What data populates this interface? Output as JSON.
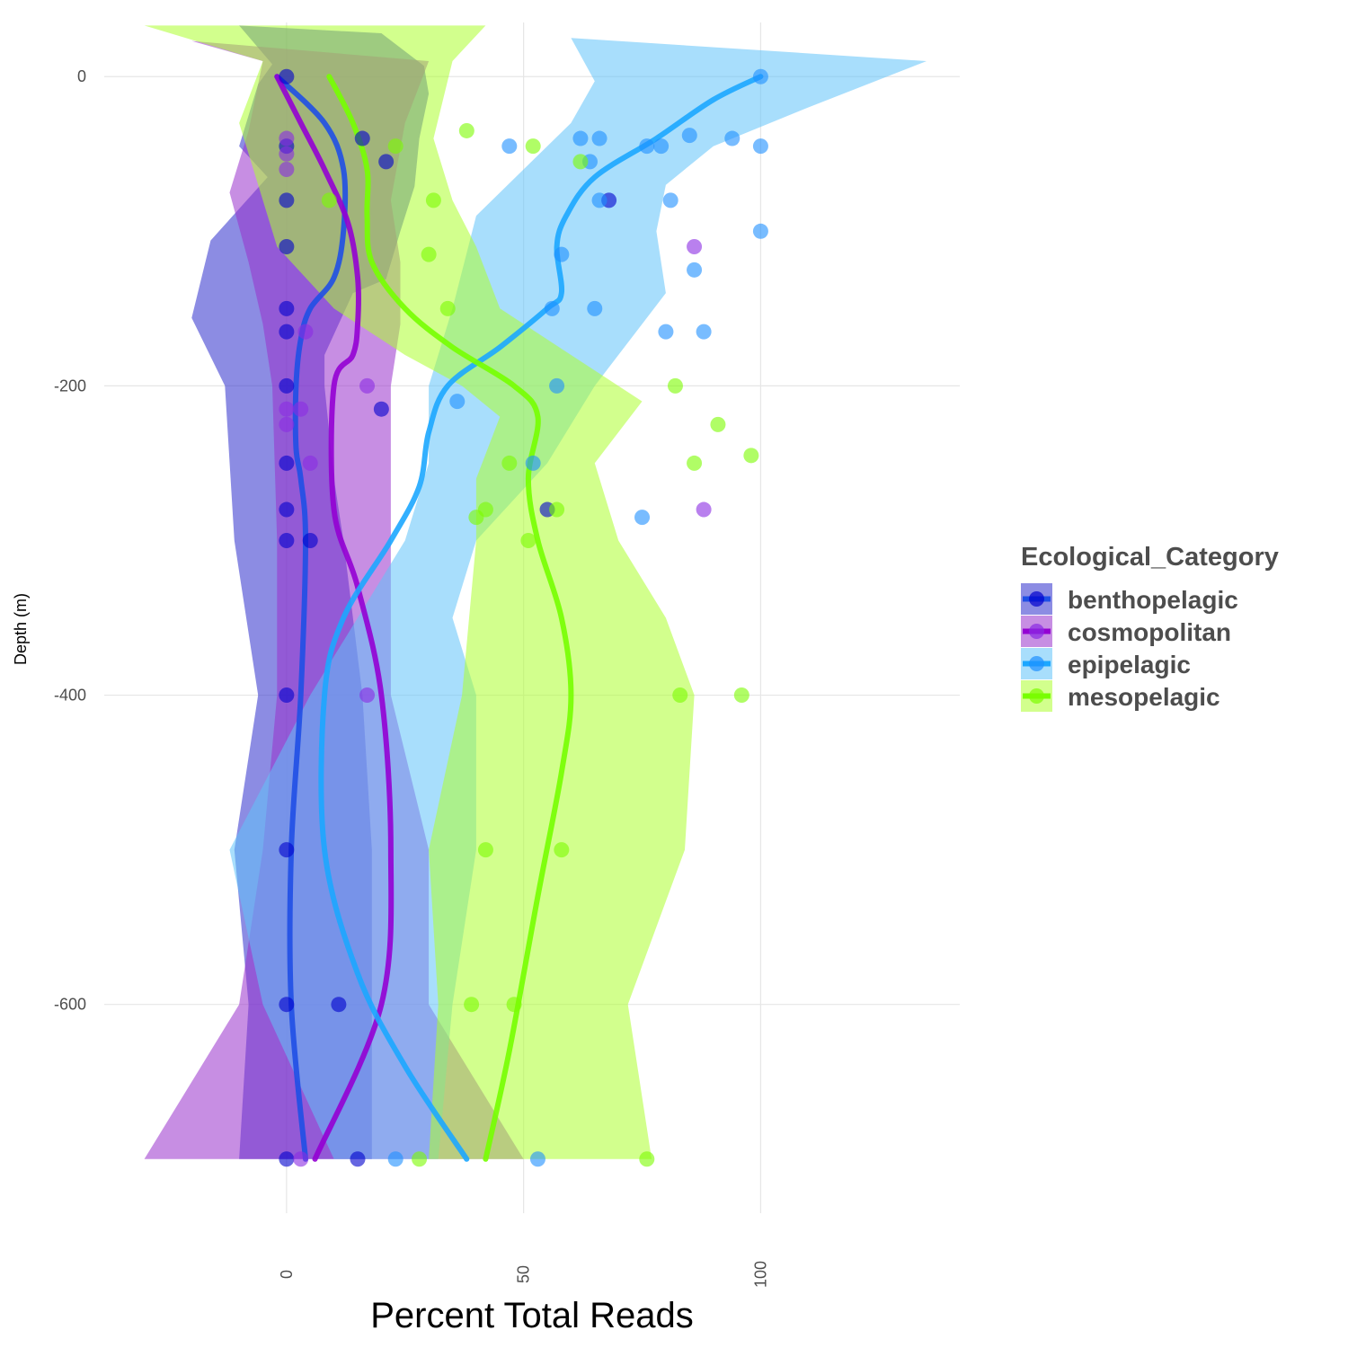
{
  "chart_data": {
    "type": "scatter",
    "xlabel": "Percent Total Reads",
    "ylabel": "Depth (m)",
    "xlim": [
      -43,
      142
    ],
    "ylim": [
      -735,
      35
    ],
    "x_ticks": [
      0,
      50,
      100
    ],
    "y_ticks": [
      0,
      -200,
      -400,
      -600
    ],
    "grid": true,
    "legend": {
      "title": "Ecological_Category",
      "position": "right"
    },
    "series": [
      {
        "name": "benthopelagic",
        "color": "#0000CD",
        "ribbon_color": "#2E2ECC",
        "line_color": "#1F4FE6",
        "points": [
          [
            0,
            0
          ],
          [
            0,
            -45
          ],
          [
            0,
            -80
          ],
          [
            0,
            -110
          ],
          [
            0,
            -150
          ],
          [
            0,
            -165
          ],
          [
            0,
            -200
          ],
          [
            0,
            -250
          ],
          [
            0,
            -280
          ],
          [
            0,
            -300
          ],
          [
            0,
            -400
          ],
          [
            0,
            -500
          ],
          [
            0,
            -600
          ],
          [
            0,
            -700
          ],
          [
            15,
            -700
          ],
          [
            20,
            -215
          ],
          [
            16,
            -40
          ],
          [
            21,
            -55
          ],
          [
            68,
            -80
          ],
          [
            55,
            -280
          ],
          [
            5,
            -300
          ],
          [
            11,
            -600
          ]
        ],
        "trend": [
          [
            -2,
            0
          ],
          [
            8,
            -30
          ],
          [
            12,
            -60
          ],
          [
            12,
            -100
          ],
          [
            10,
            -130
          ],
          [
            5,
            -150
          ],
          [
            3,
            -170
          ],
          [
            2,
            -200
          ],
          [
            2,
            -240
          ],
          [
            3,
            -260
          ],
          [
            4,
            -300
          ],
          [
            3,
            -400
          ],
          [
            1,
            -500
          ],
          [
            1,
            -600
          ],
          [
            4,
            -700
          ]
        ],
        "ribbon": [
          [
            -10,
            33
          ],
          [
            -3,
            8
          ],
          [
            -6,
            -5
          ],
          [
            -10,
            -45
          ],
          [
            -4,
            -65
          ],
          [
            -16,
            -106
          ],
          [
            -20,
            -156
          ],
          [
            -13,
            -200
          ],
          [
            -11,
            -300
          ],
          [
            -6,
            -400
          ],
          [
            -11,
            -500
          ],
          [
            -8,
            -600
          ],
          [
            -10,
            -700
          ],
          [
            20,
            28
          ],
          [
            29,
            7
          ],
          [
            30,
            -11
          ],
          [
            28,
            -40
          ],
          [
            27,
            -71
          ],
          [
            24,
            -100
          ],
          [
            21,
            -131
          ],
          [
            14,
            -140
          ],
          [
            8,
            -180
          ],
          [
            8,
            -200
          ],
          [
            10,
            -260
          ],
          [
            12,
            -300
          ],
          [
            16,
            -400
          ],
          [
            18,
            -500
          ],
          [
            18,
            -600
          ],
          [
            18,
            -700
          ]
        ]
      },
      {
        "name": "cosmopolitan",
        "color": "#8A2BE2",
        "ribbon_color": "#9932CC",
        "line_color": "#9400D3",
        "points": [
          [
            0,
            -40
          ],
          [
            0,
            -50
          ],
          [
            0,
            -60
          ],
          [
            86,
            -110
          ],
          [
            4,
            -165
          ],
          [
            17,
            -200
          ],
          [
            5,
            -250
          ],
          [
            88,
            -280
          ],
          [
            3,
            -700
          ],
          [
            17,
            -400
          ],
          [
            0,
            -215
          ],
          [
            0,
            -225
          ],
          [
            3,
            -215
          ]
        ],
        "trend": [
          [
            -2,
            0
          ],
          [
            3,
            -30
          ],
          [
            8,
            -60
          ],
          [
            13,
            -95
          ],
          [
            15,
            -130
          ],
          [
            15,
            -160
          ],
          [
            14,
            -180
          ],
          [
            10,
            -200
          ],
          [
            10,
            -280
          ],
          [
            15,
            -330
          ],
          [
            20,
            -400
          ],
          [
            22,
            -500
          ],
          [
            20,
            -600
          ],
          [
            6,
            -700
          ]
        ],
        "ribbon": [
          [
            -20,
            23
          ],
          [
            -5,
            10
          ],
          [
            -8,
            -35
          ],
          [
            -12,
            -75
          ],
          [
            -8,
            -120
          ],
          [
            -5,
            -160
          ],
          [
            -3,
            -200
          ],
          [
            -2,
            -300
          ],
          [
            -2,
            -400
          ],
          [
            -5,
            -500
          ],
          [
            -10,
            -600
          ],
          [
            -30,
            -700
          ],
          [
            30,
            10
          ],
          [
            25,
            -30
          ],
          [
            22,
            -80
          ],
          [
            24,
            -120
          ],
          [
            24,
            -160
          ],
          [
            22,
            -200
          ],
          [
            22,
            -280
          ],
          [
            22,
            -400
          ],
          [
            30,
            -500
          ],
          [
            30,
            -600
          ],
          [
            50,
            -700
          ]
        ]
      },
      {
        "name": "epipelagic",
        "color": "#1E90FF",
        "ribbon_color": "#61C2F9",
        "line_color": "#1CA7FF",
        "points": [
          [
            100,
            0
          ],
          [
            62,
            -40
          ],
          [
            66,
            -40
          ],
          [
            47,
            -45
          ],
          [
            76,
            -45
          ],
          [
            79,
            -45
          ],
          [
            85,
            -38
          ],
          [
            94,
            -40
          ],
          [
            100,
            -45
          ],
          [
            64,
            -55
          ],
          [
            66,
            -80
          ],
          [
            81,
            -80
          ],
          [
            100,
            -100
          ],
          [
            58,
            -115
          ],
          [
            86,
            -125
          ],
          [
            56,
            -150
          ],
          [
            65,
            -150
          ],
          [
            80,
            -165
          ],
          [
            88,
            -165
          ],
          [
            57,
            -200
          ],
          [
            52,
            -250
          ],
          [
            75,
            -285
          ],
          [
            36,
            -210
          ],
          [
            23,
            -700
          ],
          [
            53,
            -700
          ]
        ],
        "trend": [
          [
            100,
            0
          ],
          [
            90,
            -15
          ],
          [
            78,
            -40
          ],
          [
            65,
            -65
          ],
          [
            59,
            -90
          ],
          [
            57,
            -110
          ],
          [
            58,
            -140
          ],
          [
            55,
            -150
          ],
          [
            45,
            -175
          ],
          [
            34,
            -200
          ],
          [
            30,
            -230
          ],
          [
            28,
            -265
          ],
          [
            22,
            -300
          ],
          [
            12,
            -350
          ],
          [
            8,
            -400
          ],
          [
            8,
            -500
          ],
          [
            15,
            -580
          ],
          [
            25,
            -640
          ],
          [
            38,
            -700
          ]
        ],
        "ribbon": [
          [
            60,
            25
          ],
          [
            65,
            -3
          ],
          [
            60,
            -30
          ],
          [
            50,
            -60
          ],
          [
            40,
            -90
          ],
          [
            35,
            -150
          ],
          [
            30,
            -200
          ],
          [
            30,
            -250
          ],
          [
            25,
            -300
          ],
          [
            15,
            -350
          ],
          [
            5,
            -400
          ],
          [
            -12,
            -500
          ],
          [
            -5,
            -600
          ],
          [
            10,
            -700
          ],
          [
            135,
            10
          ],
          [
            110,
            -20
          ],
          [
            90,
            -45
          ],
          [
            80,
            -70
          ],
          [
            78,
            -100
          ],
          [
            80,
            -140
          ],
          [
            75,
            -160
          ],
          [
            65,
            -200
          ],
          [
            55,
            -250
          ],
          [
            40,
            -300
          ],
          [
            35,
            -350
          ],
          [
            40,
            -400
          ],
          [
            40,
            -500
          ],
          [
            35,
            -600
          ],
          [
            32,
            -700
          ]
        ]
      },
      {
        "name": "mesopelagic",
        "color": "#7CFC00",
        "ribbon_color": "#ADFF2F",
        "line_color": "#76FF00",
        "points": [
          [
            38,
            -35
          ],
          [
            52,
            -45
          ],
          [
            23,
            -45
          ],
          [
            62,
            -55
          ],
          [
            31,
            -80
          ],
          [
            9,
            -80
          ],
          [
            30,
            -115
          ],
          [
            34,
            -150
          ],
          [
            82,
            -200
          ],
          [
            91,
            -225
          ],
          [
            98,
            -245
          ],
          [
            86,
            -250
          ],
          [
            47,
            -250
          ],
          [
            40,
            -285
          ],
          [
            42,
            -280
          ],
          [
            57,
            -280
          ],
          [
            51,
            -300
          ],
          [
            83,
            -400
          ],
          [
            96,
            -400
          ],
          [
            42,
            -500
          ],
          [
            58,
            -500
          ],
          [
            48,
            -600
          ],
          [
            39,
            -600
          ],
          [
            28,
            -700
          ],
          [
            76,
            -700
          ]
        ],
        "trend": [
          [
            9,
            0
          ],
          [
            14,
            -30
          ],
          [
            17,
            -60
          ],
          [
            17,
            -90
          ],
          [
            18,
            -120
          ],
          [
            25,
            -150
          ],
          [
            35,
            -175
          ],
          [
            48,
            -200
          ],
          [
            53,
            -220
          ],
          [
            51,
            -260
          ],
          [
            53,
            -300
          ],
          [
            58,
            -350
          ],
          [
            60,
            -400
          ],
          [
            58,
            -450
          ],
          [
            53,
            -530
          ],
          [
            47,
            -630
          ],
          [
            42,
            -700
          ]
        ],
        "ribbon": [
          [
            -30,
            33
          ],
          [
            -5,
            10
          ],
          [
            -10,
            -30
          ],
          [
            -5,
            -80
          ],
          [
            -2,
            -110
          ],
          [
            10,
            -150
          ],
          [
            25,
            -180
          ],
          [
            37,
            -200
          ],
          [
            45,
            -220
          ],
          [
            40,
            -260
          ],
          [
            40,
            -300
          ],
          [
            37,
            -400
          ],
          [
            30,
            -500
          ],
          [
            32,
            -600
          ],
          [
            30,
            -700
          ],
          [
            42,
            33
          ],
          [
            35,
            10
          ],
          [
            31,
            -40
          ],
          [
            35,
            -80
          ],
          [
            40,
            -110
          ],
          [
            45,
            -150
          ],
          [
            60,
            -180
          ],
          [
            75,
            -210
          ],
          [
            65,
            -250
          ],
          [
            70,
            -300
          ],
          [
            80,
            -350
          ],
          [
            86,
            -400
          ],
          [
            84,
            -500
          ],
          [
            72,
            -600
          ],
          [
            77,
            -700
          ]
        ]
      }
    ]
  }
}
